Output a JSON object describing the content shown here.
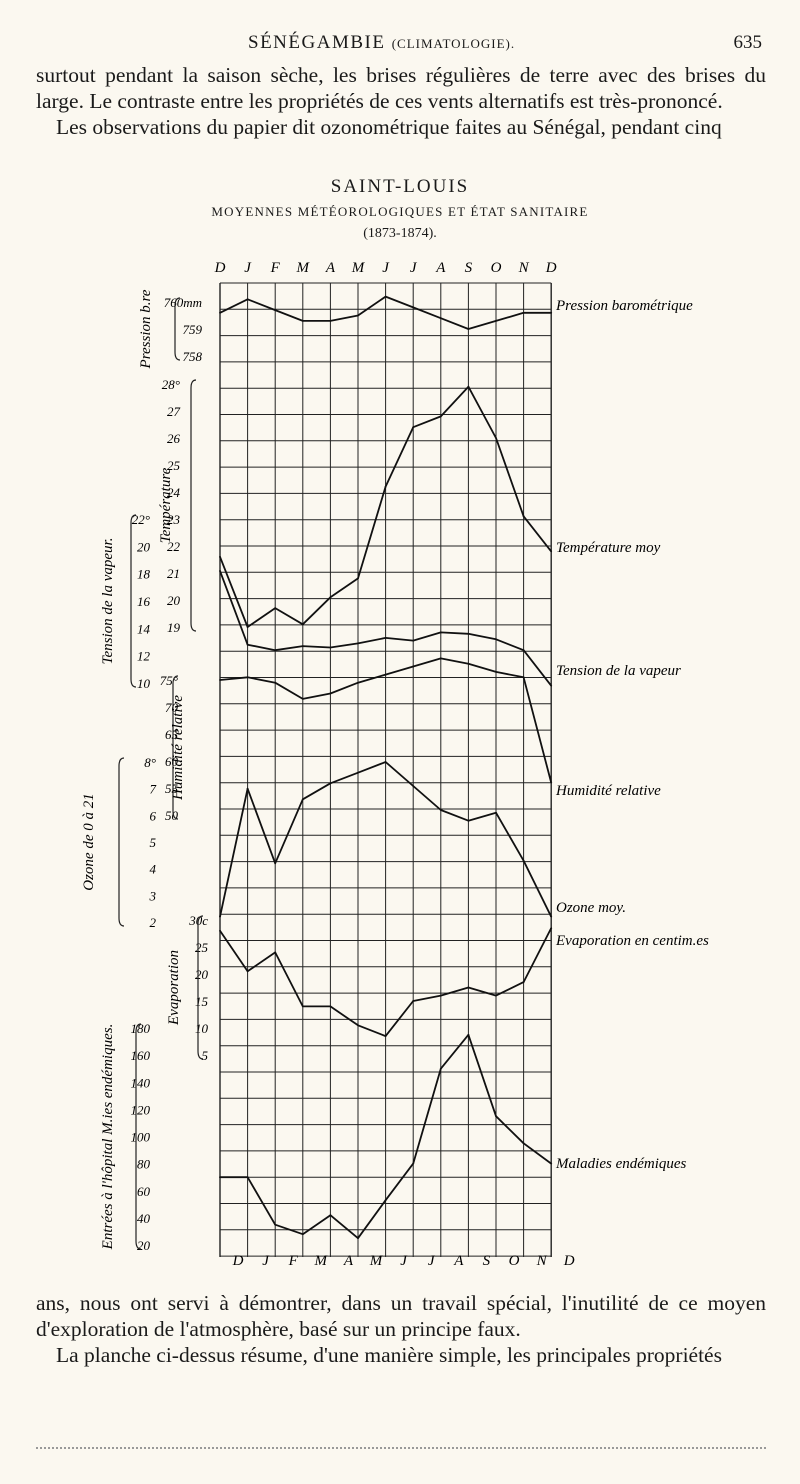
{
  "header": {
    "running_title_main": "SÉNÉGAMBIE",
    "running_title_small": "(CLIMATOLOGIE).",
    "page_number": "635"
  },
  "text": {
    "para_top_1": "surtout pendant la saison sèche, les brises régulières de terre avec des brises du large. Le contraste entre les propriétés de ces vents alternatifs est très-prononcé.",
    "para_top_2": "Les observations du papier dit ozonométrique faites au Sénégal, pendant cinq",
    "para_bottom_1": "ans, nous ont servi à démontrer, dans un travail spécial, l'inutilité de ce moyen d'exploration de l'atmosphère, basé sur un principe faux.",
    "para_bottom_2": "La planche ci-dessus résume, d'une manière simple, les principales propriétés"
  },
  "chart_data": {
    "type": "line",
    "title": "SAINT-LOUIS",
    "subtitle": "MOYENNES MÉTÉOROLOGIQUES ET ÉTAT SANITAIRE",
    "period": "(1873-1874).",
    "categories": [
      "D",
      "J",
      "F",
      "M",
      "A",
      "M",
      "J",
      "J",
      "A",
      "S",
      "O",
      "N",
      "D"
    ],
    "bottom_categories": [
      "D",
      "J",
      "F",
      "M",
      "A",
      "M",
      "J",
      "J",
      "A",
      "S",
      "O",
      "N",
      "D"
    ],
    "grid": true,
    "series": [
      {
        "name": "Pression barométrique",
        "axis_label": "Pression b.re",
        "ticks": [
          "760mm",
          "759",
          "758"
        ],
        "values": [
          759.6,
          760.1,
          759.7,
          759.3,
          759.3,
          759.5,
          760.2,
          759.8,
          759.4,
          759.0,
          759.3,
          759.6,
          759.6
        ]
      },
      {
        "name": "Température moy",
        "axis_label": "Température",
        "ticks": [
          "28°",
          "27",
          "26",
          "25",
          "24",
          "23",
          "22",
          "21",
          "20",
          "19"
        ],
        "values": [
          21.6,
          19.0,
          19.7,
          19.1,
          20.1,
          20.8,
          24.2,
          26.4,
          26.8,
          27.9,
          26.0,
          23.1,
          21.8
        ]
      },
      {
        "name": "Tension de la vapeur",
        "axis_label": "Tension de la vapeur.",
        "ticks": [
          "22°",
          "20",
          "18",
          "16",
          "14",
          "12",
          "10"
        ],
        "values": [
          18.2,
          12.8,
          12.4,
          12.7,
          12.6,
          12.9,
          13.3,
          13.1,
          13.7,
          13.6,
          13.2,
          12.4,
          9.8
        ]
      },
      {
        "name": "Humidité relative",
        "axis_label": "Humidité relative",
        "ticks": [
          "75°",
          "70",
          "65",
          "60",
          "55",
          "50"
        ],
        "values": [
          75.0,
          75.5,
          74.5,
          71.5,
          72.5,
          74.5,
          76.0,
          77.5,
          79.0,
          78.0,
          76.5,
          75.5,
          56.0
        ]
      },
      {
        "name": "Ozone moy.",
        "axis_label": "Ozone de 0 à 21",
        "ticks": [
          "8°",
          "7",
          "6",
          "5",
          "4",
          "3",
          "2"
        ],
        "values": [
          2.2,
          7.0,
          4.2,
          6.6,
          7.2,
          7.6,
          8.0,
          7.1,
          6.2,
          5.8,
          6.1,
          4.3,
          2.2
        ]
      },
      {
        "name": "Evaporation en centim.es",
        "axis_label": "Evaporation",
        "ticks": [
          "30c",
          "25",
          "20",
          "15",
          "10",
          "5"
        ],
        "values": [
          28.0,
          20.5,
          24.0,
          14.0,
          14.0,
          10.5,
          8.5,
          15.0,
          16.0,
          17.5,
          16.0,
          18.5,
          28.5
        ]
      },
      {
        "name": "Maladies endémiques",
        "axis_label": "Entrées à l'hôpital M.ies endémiques.",
        "ticks": [
          "180",
          "160",
          "140",
          "120",
          "100",
          "80",
          "60",
          "40",
          "20"
        ],
        "values": [
          70,
          70,
          35,
          28,
          42,
          25,
          53,
          80,
          150,
          175,
          115,
          95,
          80
        ]
      }
    ]
  }
}
